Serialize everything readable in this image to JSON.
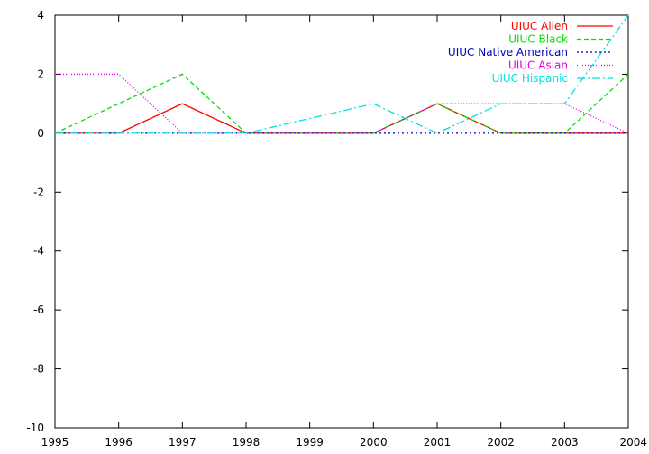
{
  "chart_data": {
    "type": "line",
    "x": [
      1995,
      1996,
      1997,
      1998,
      1999,
      2000,
      2001,
      2002,
      2003,
      2004
    ],
    "xlim": [
      1995,
      2004
    ],
    "ylim": [
      -10,
      4
    ],
    "x_ticks": [
      "1995",
      "1996",
      "1997",
      "1998",
      "1999",
      "2000",
      "2001",
      "2002",
      "2003",
      "2004"
    ],
    "y_ticks": [
      "4",
      "2",
      "0",
      "-2",
      "-4",
      "-6",
      "-8",
      "-10"
    ],
    "grid": false,
    "legend_position": "top-right",
    "series": [
      {
        "name": "UIUC Alien",
        "color": "#ff0000",
        "dash": "solid",
        "values": [
          0,
          0,
          1,
          0,
          0,
          0,
          1,
          0,
          0,
          0
        ]
      },
      {
        "name": "UIUC Black",
        "color": "#00e000",
        "dash": "dashed",
        "values": [
          0,
          1,
          2,
          0,
          0,
          0,
          1,
          0,
          0,
          2
        ]
      },
      {
        "name": "UIUC Native American",
        "color": "#0000c0",
        "dash": "dotted",
        "values": [
          0,
          0,
          0,
          0,
          0,
          0,
          0,
          0,
          0,
          0
        ]
      },
      {
        "name": "UIUC Asian",
        "color": "#e000e0",
        "dash": "fine-dotted",
        "values": [
          2,
          2,
          0,
          0,
          0,
          0,
          1,
          1,
          1,
          0
        ]
      },
      {
        "name": "UIUC Hispanic",
        "color": "#00e0e0",
        "dash": "dash-dot",
        "values": [
          0,
          0,
          0,
          0,
          0.5,
          1,
          0,
          1,
          1,
          4
        ]
      }
    ]
  }
}
